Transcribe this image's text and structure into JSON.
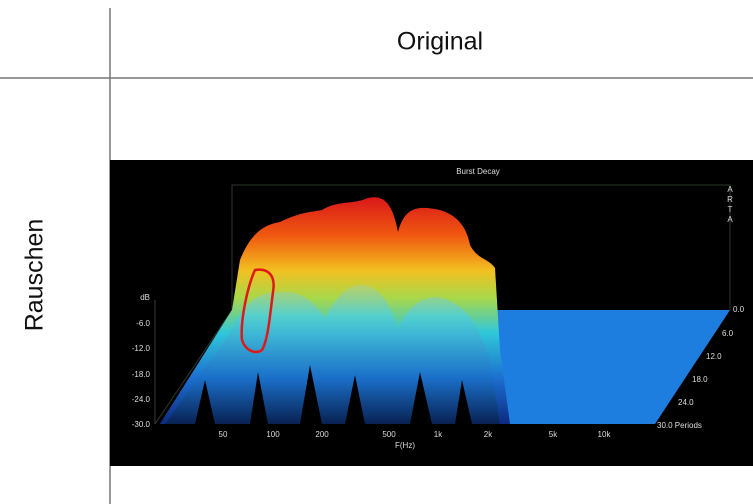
{
  "table": {
    "header": "Original",
    "row_label": "Rauschen",
    "figure": {
      "title": "Burst Decay",
      "brand": [
        "A",
        "R",
        "T",
        "A"
      ],
      "y_unit": "dB",
      "y_labels": [
        "-6.0",
        "-12.0",
        "-18.0",
        "-24.0",
        "-30.0"
      ],
      "x_labels": [
        "50",
        "100",
        "200",
        "500",
        "1k",
        "2k",
        "5k",
        "10k"
      ],
      "x_title": "F(Hz)",
      "z_labels": [
        "0.0",
        "6.0",
        "12.0",
        "18.0",
        "24.0",
        "30.0 Periods"
      ]
    }
  }
}
